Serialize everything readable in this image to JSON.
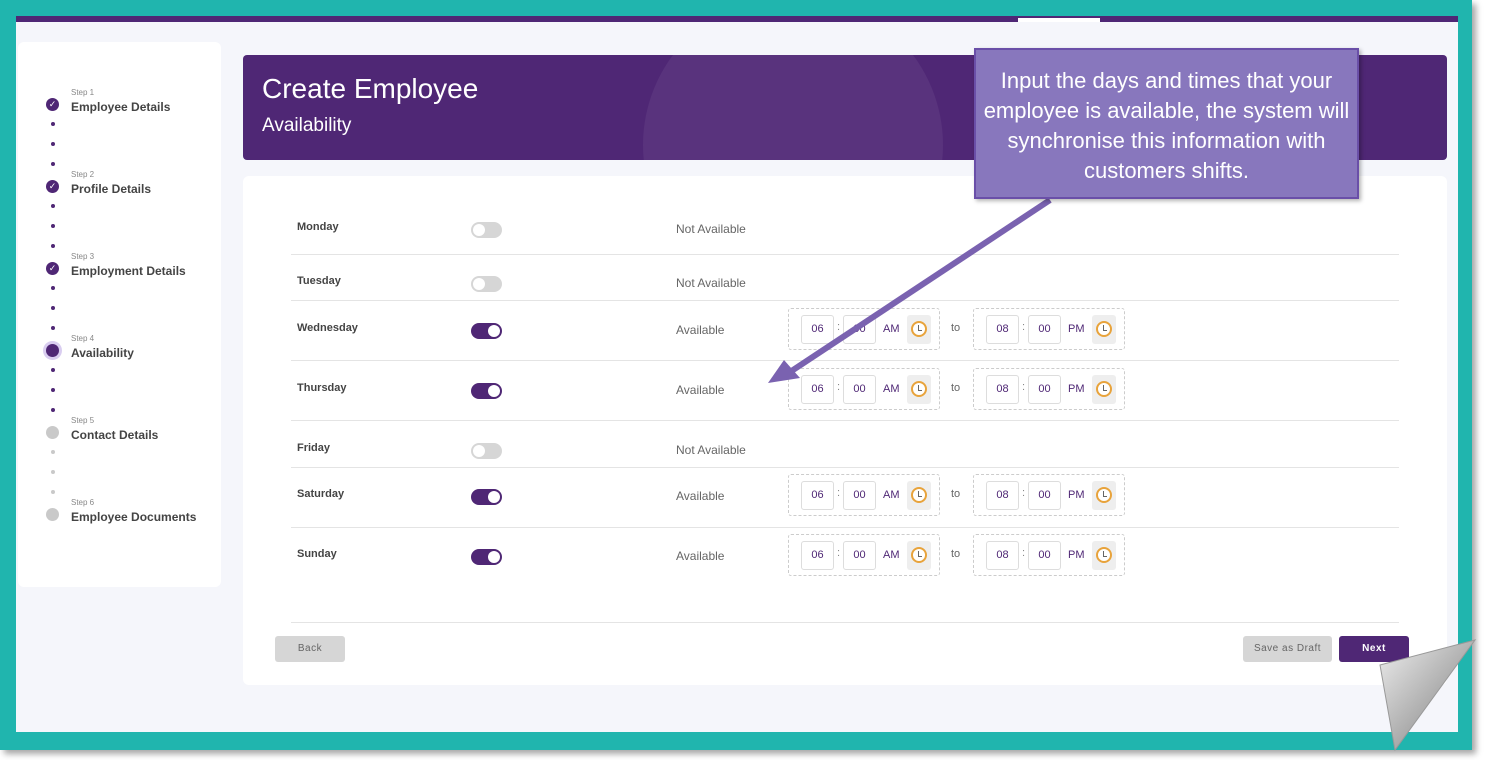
{
  "header": {
    "title": "Create Employee",
    "subtitle": "Availability"
  },
  "steps": [
    {
      "num": "Step 1",
      "label": "Employee Details",
      "state": "done"
    },
    {
      "num": "Step 2",
      "label": "Profile Details",
      "state": "done"
    },
    {
      "num": "Step 3",
      "label": "Employment Details",
      "state": "done"
    },
    {
      "num": "Step 4",
      "label": "Availability",
      "state": "current"
    },
    {
      "num": "Step 5",
      "label": "Contact Details",
      "state": "todo"
    },
    {
      "num": "Step 6",
      "label": "Employee Documents",
      "state": "todo"
    }
  ],
  "days": [
    {
      "day": "Monday",
      "on": false,
      "status": "Not Available"
    },
    {
      "day": "Tuesday",
      "on": false,
      "status": "Not Available"
    },
    {
      "day": "Wednesday",
      "on": true,
      "status": "Available",
      "from": {
        "h": "06",
        "m": "00",
        "ap": "AM"
      },
      "to": {
        "h": "08",
        "m": "00",
        "ap": "PM"
      }
    },
    {
      "day": "Thursday",
      "on": true,
      "status": "Available",
      "from": {
        "h": "06",
        "m": "00",
        "ap": "AM"
      },
      "to": {
        "h": "08",
        "m": "00",
        "ap": "PM"
      }
    },
    {
      "day": "Friday",
      "on": false,
      "status": "Not Available"
    },
    {
      "day": "Saturday",
      "on": true,
      "status": "Available",
      "from": {
        "h": "06",
        "m": "00",
        "ap": "AM"
      },
      "to": {
        "h": "08",
        "m": "00",
        "ap": "PM"
      }
    },
    {
      "day": "Sunday",
      "on": true,
      "status": "Available",
      "from": {
        "h": "06",
        "m": "00",
        "ap": "AM"
      },
      "to": {
        "h": "08",
        "m": "00",
        "ap": "PM"
      }
    }
  ],
  "labels": {
    "to": "to",
    "colon": ":"
  },
  "buttons": {
    "back": "Back",
    "draft": "Save as Draft",
    "next": "Next"
  },
  "callout": "Input the days and times that your employee is available, the system will synchronise this information with customers shifts.",
  "colors": {
    "brand": "#4f2775",
    "frame": "#20b5ae",
    "callout": "#8877bd"
  }
}
